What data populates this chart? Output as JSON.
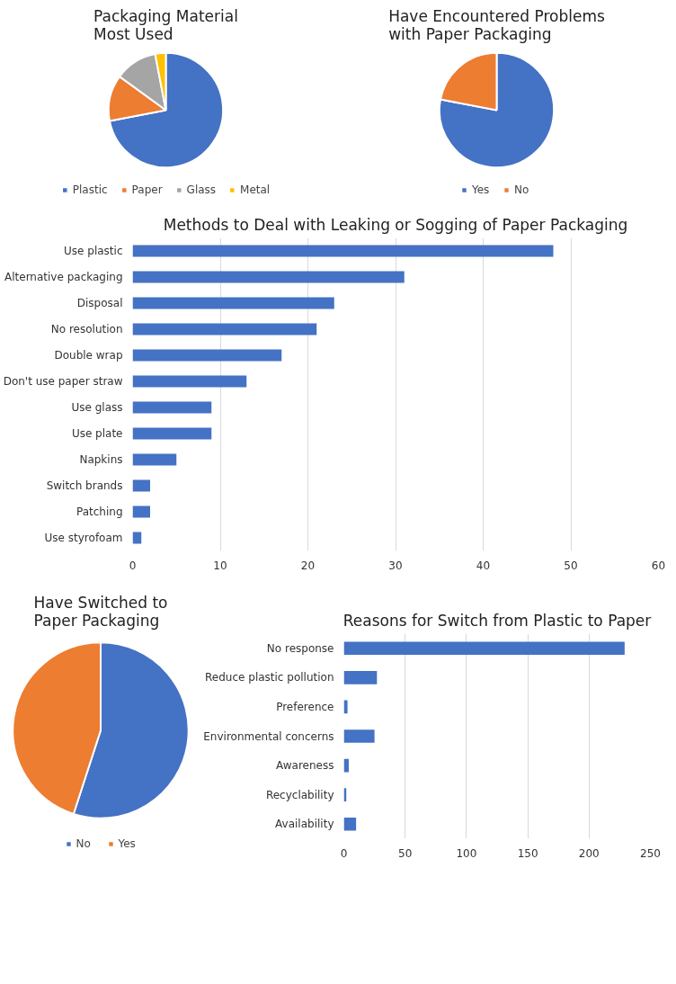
{
  "chart_data": [
    {
      "type": "pie",
      "title": "Packaging Material Most Used",
      "categories": [
        "Plastic",
        "Paper",
        "Glass",
        "Metal"
      ],
      "values": [
        72,
        13,
        12,
        3
      ],
      "colors": [
        "#4472c4",
        "#ed7d31",
        "#a5a5a5",
        "#ffc000"
      ],
      "legend": "bottom"
    },
    {
      "type": "pie",
      "title": "Have Encountered Problems with Paper Packaging",
      "categories": [
        "Yes",
        "No"
      ],
      "values": [
        78,
        22
      ],
      "colors": [
        "#4472c4",
        "#ed7d31"
      ],
      "legend": "bottom"
    },
    {
      "type": "bar",
      "orientation": "horizontal",
      "title": "Methods to Deal with Leaking or Sogging of Paper Packaging",
      "categories": [
        "Use plastic",
        "Alternative packaging",
        "Disposal",
        "No resolution",
        "Double wrap",
        "Don't use paper straw",
        "Use glass",
        "Use plate",
        "Napkins",
        "Switch brands",
        "Patching",
        "Use styrofoam"
      ],
      "values": [
        48,
        31,
        23,
        21,
        17,
        13,
        9,
        9,
        5,
        2,
        2,
        1
      ],
      "color": "#4472c4",
      "xlim": [
        0,
        60
      ],
      "xticks": [
        0,
        10,
        20,
        30,
        40,
        50,
        60
      ],
      "grid": "x"
    },
    {
      "type": "pie",
      "title": "Have Switched to Paper Packaging",
      "categories": [
        "No",
        "Yes"
      ],
      "values": [
        55,
        45
      ],
      "colors": [
        "#4472c4",
        "#ed7d31"
      ],
      "legend": "bottom"
    },
    {
      "type": "bar",
      "orientation": "horizontal",
      "title": "Reasons for Switch from Plastic to Paper",
      "categories": [
        "No response",
        "Reduce plastic pollution",
        "Preference",
        "Environmental concerns",
        "Awareness",
        "Recyclability",
        "Availability"
      ],
      "values": [
        229,
        27,
        3,
        25,
        4,
        2,
        10
      ],
      "color": "#4472c4",
      "xlim": [
        0,
        250
      ],
      "xticks": [
        0,
        50,
        100,
        150,
        200,
        250
      ],
      "grid": "x"
    }
  ]
}
